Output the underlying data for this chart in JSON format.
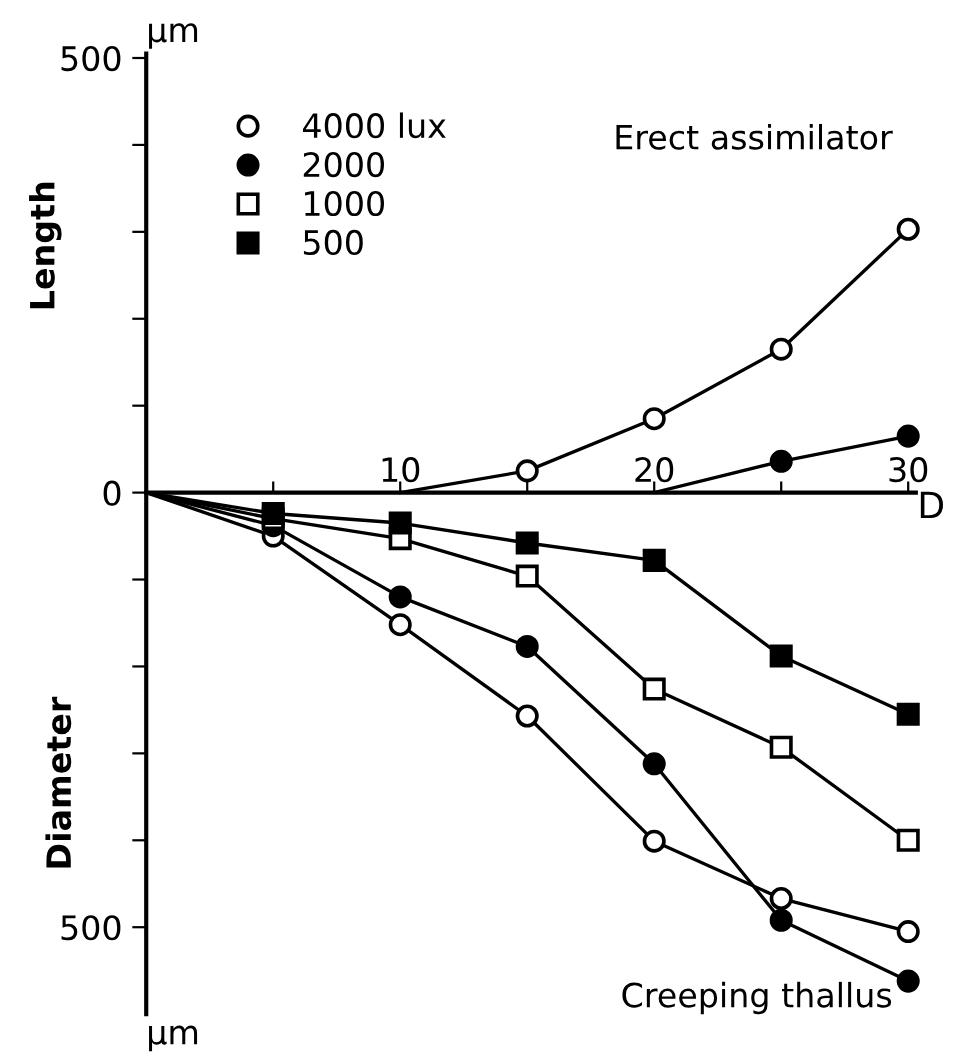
{
  "chart_data": {
    "type": "line",
    "ylabel": "Length",
    "xlabel": "D",
    "annotations": [
      "Erect assimilator",
      "Creeping thallus",
      "Diameter",
      "μm",
      "μm"
    ],
    "xlim": [
      0,
      30.3
    ],
    "xticks": [
      {
        "value": 5,
        "label": null
      },
      10,
      {
        "value": 15,
        "label": null
      },
      20,
      {
        "value": 25,
        "label": null
      },
      30
    ],
    "ylim": [
      -600,
      505
    ],
    "yticks": [
      {
        "value": -500,
        "label": "500"
      },
      {
        "value": -400,
        "label": null
      },
      {
        "value": -300,
        "label": null
      },
      {
        "value": -200,
        "label": null
      },
      {
        "value": -100,
        "label": null
      },
      0,
      {
        "value": 100,
        "label": null
      },
      {
        "value": 200,
        "label": null
      },
      {
        "value": 300,
        "label": null
      },
      {
        "value": 400,
        "label": null
      },
      500
    ],
    "grid": false,
    "legend": "top left",
    "series": [
      {
        "name": "4000 lux",
        "marker": "circle",
        "color": "#000000",
        "colors": [
          null,
          "#ffffff",
          "#ffffff",
          "#ffffff",
          "#ffffff",
          "#ffffff",
          "#ffffff"
        ],
        "x": [
          0,
          5,
          10,
          15,
          20,
          25,
          30
        ],
        "values": [
          0,
          -50,
          -152,
          -257,
          -401,
          -467,
          -505
        ]
      },
      {
        "name": "2000",
        "marker": "circle",
        "color": "#000000",
        "colors": [
          null,
          "#000000",
          "#000000",
          "#000000",
          "#000000",
          "#000000",
          "#000000"
        ],
        "x": [
          0,
          5,
          10,
          15,
          20,
          25,
          30
        ],
        "values": [
          0,
          -38,
          -120,
          -177,
          -312,
          -492,
          -562
        ]
      },
      {
        "name": "1000",
        "marker": "square",
        "color": "#000000",
        "colors": [
          null,
          "#ffffff",
          "#ffffff",
          "#ffffff",
          "#ffffff",
          "#ffffff",
          "#ffffff"
        ],
        "x": [
          0,
          5,
          10,
          15,
          20,
          25,
          30
        ],
        "values": [
          0,
          -30,
          -53,
          -96,
          -226,
          -293,
          -400
        ]
      },
      {
        "name": "500",
        "marker": "square",
        "color": "#000000",
        "colors": [
          null,
          "#000000",
          "#000000",
          "#000000",
          "#000000",
          "#000000",
          "#000000"
        ],
        "x": [
          0,
          5,
          10,
          15,
          20,
          25,
          30
        ],
        "values": [
          0,
          -24,
          -35,
          -58,
          -78,
          -188,
          -255
        ]
      },
      {
        "marker": "circle",
        "color": "#000000",
        "colors": [
          null,
          "#ffffff",
          "#ffffff",
          "#ffffff",
          "#ffffff"
        ],
        "x": [
          10,
          15,
          20,
          25,
          30
        ],
        "values": [
          0,
          25,
          85,
          165,
          303
        ]
      },
      {
        "marker": "circle",
        "color": "#000000",
        "colors": [
          null,
          "#000000",
          "#000000"
        ],
        "x": [
          20,
          25,
          30
        ],
        "values": [
          0,
          36,
          65
        ]
      }
    ]
  }
}
